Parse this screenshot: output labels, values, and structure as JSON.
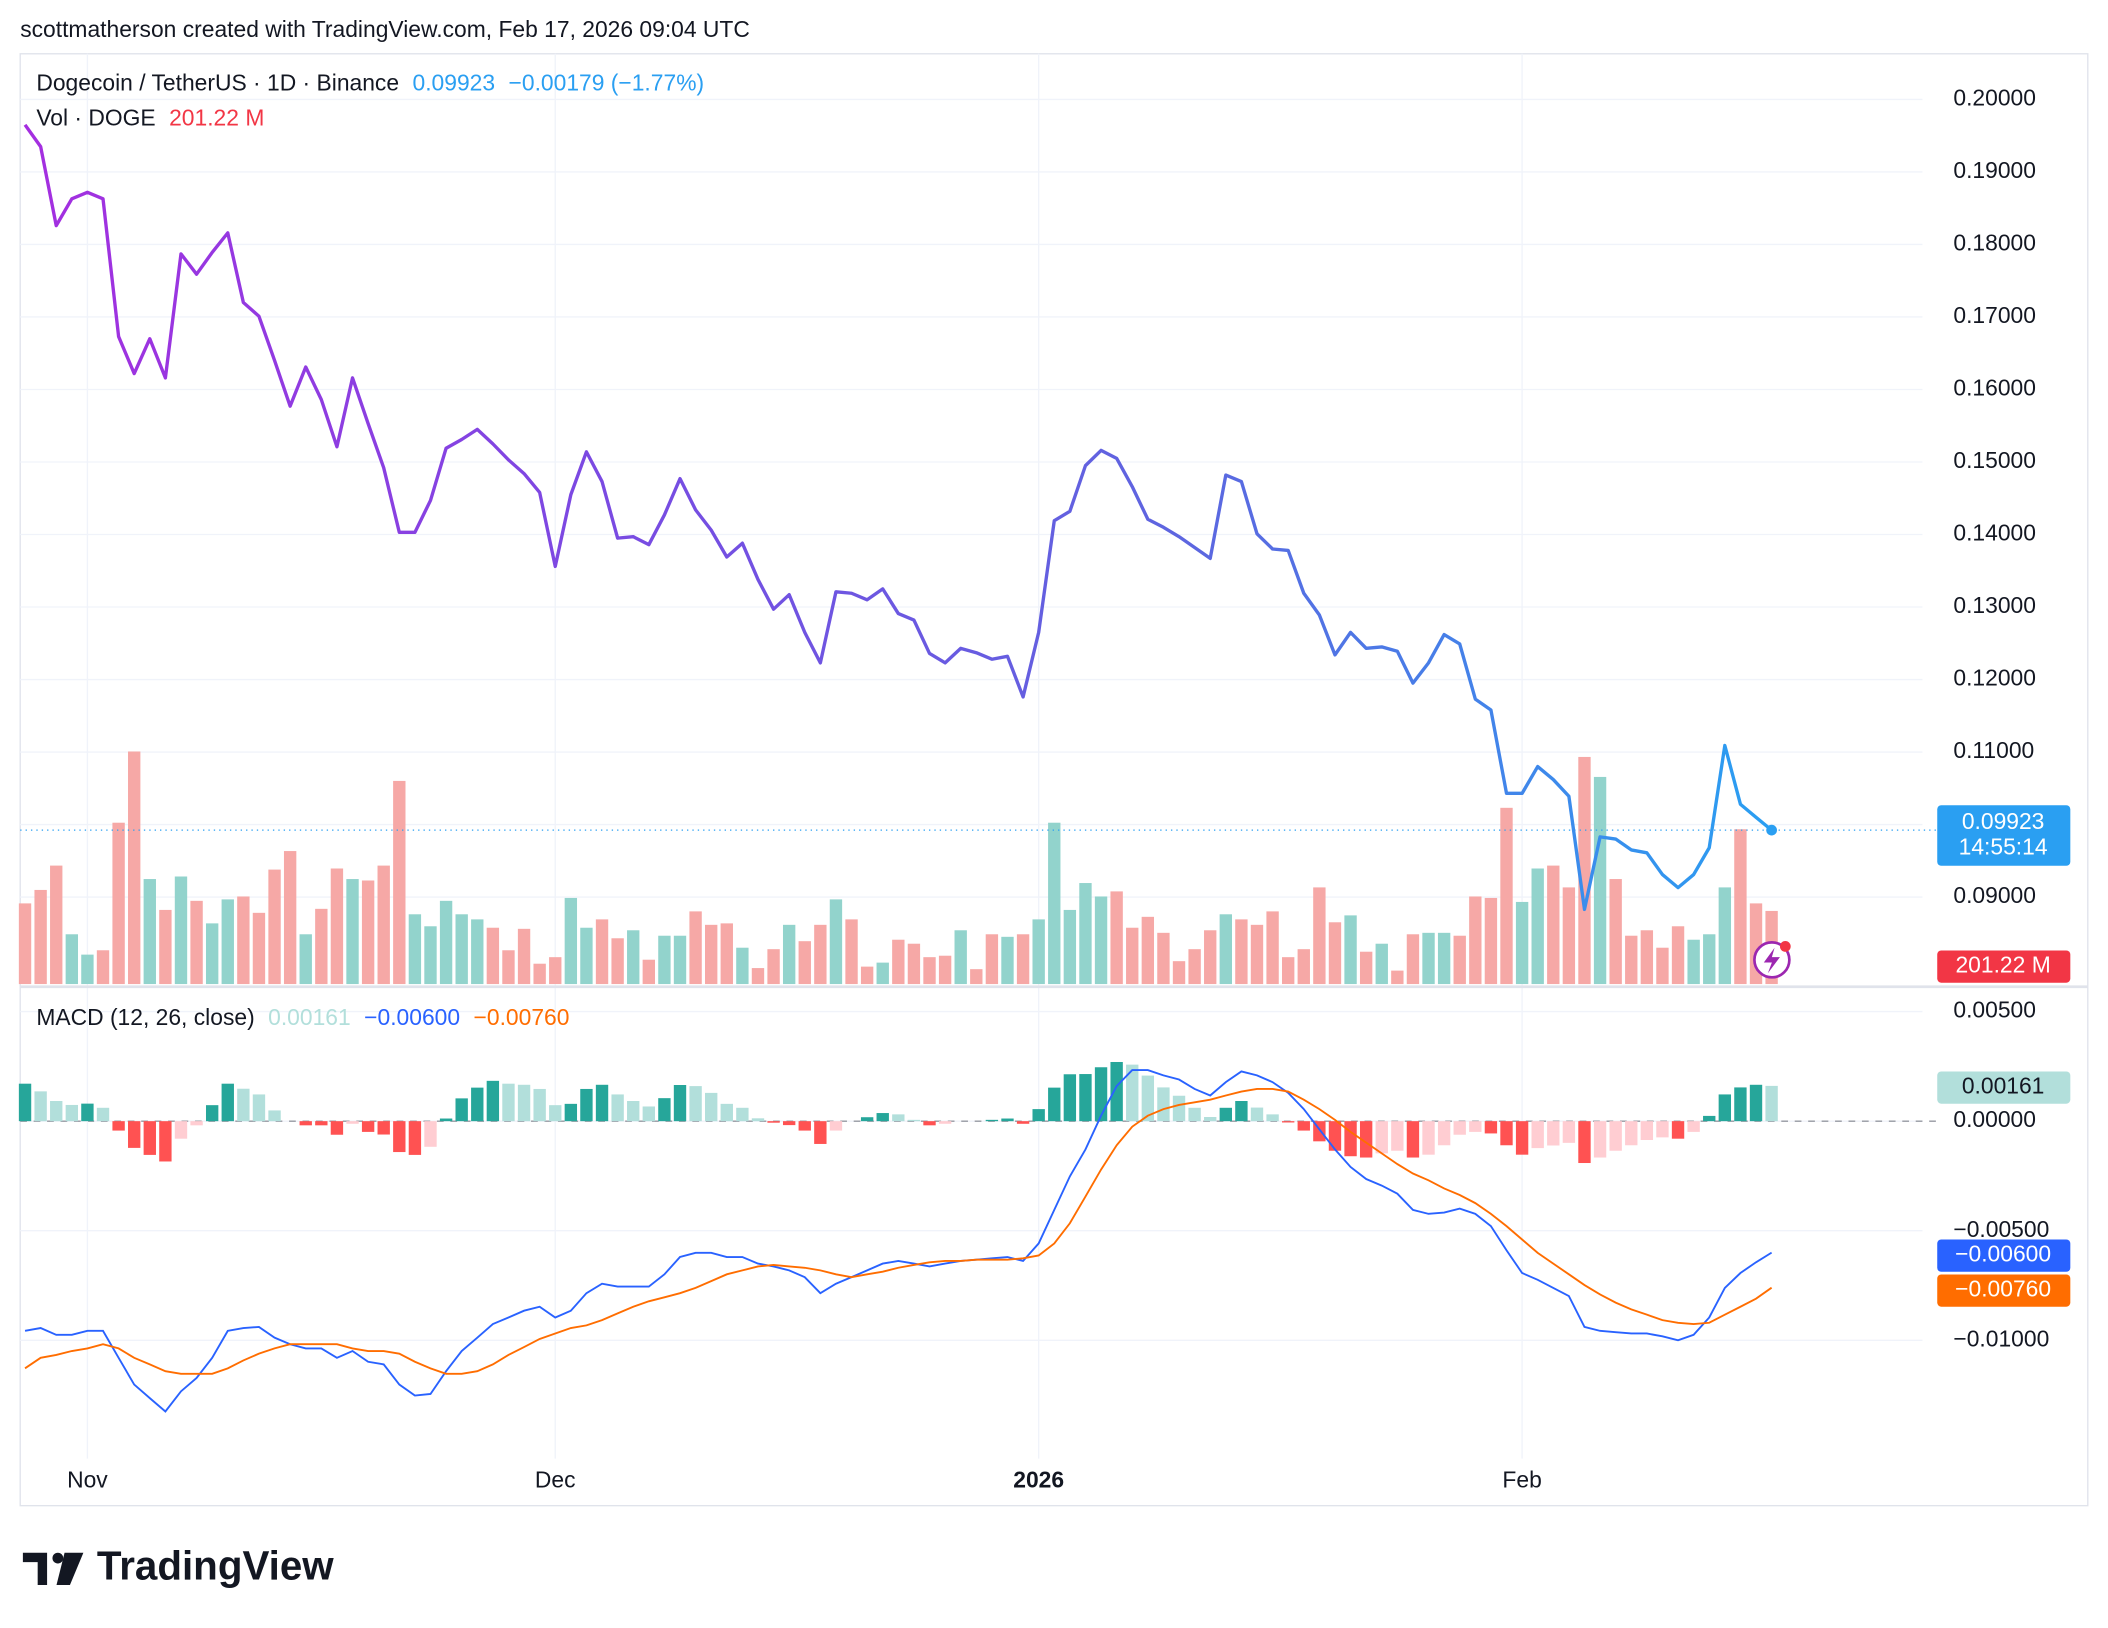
{
  "header": "scottmatherson created with TradingView.com, Feb 17, 2026 09:04 UTC",
  "footer": "TradingView",
  "chart_data": [
    {
      "type": "line",
      "title": "Dogecoin / TetherUS · 1D · Binance",
      "change_label": "−0.00179 (−1.77%)",
      "countdown": "14:55:14",
      "colors": [
        "#a52ee0",
        "#7a4ae2",
        "#5d66e0",
        "#2a9ff2"
      ],
      "grid": true,
      "ylim": [
        0.078,
        0.2063
      ],
      "yticks": [
        {
          "value": 0.09,
          "label": "0.09000"
        },
        {
          "value": 0.1,
          "label": "0.10000"
        },
        {
          "value": 0.11,
          "label": "0.11000"
        },
        {
          "value": 0.12,
          "label": "0.12000"
        },
        {
          "value": 0.13,
          "label": "0.13000"
        },
        {
          "value": 0.14,
          "label": "0.14000"
        },
        {
          "value": 0.15,
          "label": "0.15000"
        },
        {
          "value": 0.16,
          "label": "0.16000"
        },
        {
          "value": 0.17,
          "label": "0.17000"
        },
        {
          "value": 0.18,
          "label": "0.18000"
        },
        {
          "value": 0.19,
          "label": "0.19000"
        },
        {
          "value": 0.2,
          "label": "0.20000"
        }
      ],
      "values": [
        0.1965,
        0.1935,
        0.1826,
        0.1863,
        0.1872,
        0.1863,
        0.1673,
        0.1622,
        0.167,
        0.1616,
        0.1787,
        0.1759,
        0.1789,
        0.1816,
        0.172,
        0.1701,
        0.164,
        0.1577,
        0.1631,
        0.1586,
        0.1521,
        0.1616,
        0.1553,
        0.1492,
        0.1403,
        0.1403,
        0.1447,
        0.1519,
        0.1531,
        0.1545,
        0.1525,
        0.1503,
        0.1484,
        0.1458,
        0.1356,
        0.1455,
        0.1514,
        0.1473,
        0.1395,
        0.1397,
        0.1386,
        0.1427,
        0.1477,
        0.1434,
        0.1406,
        0.1369,
        0.1388,
        0.1338,
        0.1297,
        0.1317,
        0.1265,
        0.1223,
        0.1321,
        0.1319,
        0.131,
        0.1325,
        0.1291,
        0.1282,
        0.1236,
        0.1223,
        0.1243,
        0.1237,
        0.1228,
        0.1232,
        0.1176,
        0.1265,
        0.1419,
        0.1432,
        0.1495,
        0.1516,
        0.1505,
        0.1466,
        0.1421,
        0.141,
        0.1397,
        0.1382,
        0.1367,
        0.1482,
        0.1473,
        0.1401,
        0.138,
        0.1378,
        0.1319,
        0.1289,
        0.1234,
        0.1265,
        0.1243,
        0.1245,
        0.1239,
        0.1195,
        0.1223,
        0.1262,
        0.1249,
        0.1173,
        0.1158,
        0.1043,
        0.1043,
        0.108,
        0.1062,
        0.1039,
        0.0883,
        0.0983,
        0.098,
        0.0965,
        0.0961,
        0.0931,
        0.0913,
        0.0931,
        0.0968,
        0.1109,
        0.1028,
        0.101,
        0.09923
      ],
      "volume": {
        "name": "Vol · DOGE",
        "last_label": "201.22 M",
        "label_color": "#f23645",
        "up_color": "#92d3cc",
        "down_color": "#f6a8a6",
        "values": [
          222,
          259,
          326,
          137,
          81,
          93,
          444,
          640,
          289,
          204,
          296,
          229,
          167,
          233,
          241,
          196,
          315,
          366,
          137,
          207,
          318,
          289,
          285,
          326,
          559,
          192,
          159,
          229,
          192,
          178,
          155,
          93,
          152,
          56,
          74,
          237,
          155,
          178,
          126,
          148,
          67,
          133,
          133,
          200,
          163,
          167,
          100,
          44,
          96,
          163,
          118,
          163,
          233,
          178,
          48,
          59,
          122,
          111,
          74,
          78,
          148,
          41,
          137,
          130,
          137,
          178,
          444,
          204,
          278,
          241,
          255,
          155,
          185,
          141,
          63,
          96,
          148,
          192,
          178,
          163,
          200,
          74,
          96,
          266,
          170,
          189,
          89,
          111,
          37,
          137,
          141,
          141,
          133,
          241,
          237,
          485,
          226,
          318,
          326,
          266,
          625,
          570,
          289,
          133,
          148,
          100,
          159,
          122,
          137,
          266,
          426,
          222,
          201.22
        ]
      }
    },
    {
      "type": "macd",
      "title": "MACD (12, 26, close)",
      "grid": true,
      "categories": [
        null,
        null,
        null,
        null,
        "Nov",
        null,
        null,
        null,
        null,
        null,
        null,
        null,
        null,
        null,
        null,
        null,
        null,
        null,
        null,
        null,
        null,
        null,
        null,
        null,
        null,
        null,
        null,
        null,
        null,
        null,
        null,
        null,
        null,
        null,
        "Dec",
        null,
        null,
        null,
        null,
        null,
        null,
        null,
        null,
        null,
        null,
        null,
        null,
        null,
        null,
        null,
        null,
        null,
        null,
        null,
        null,
        null,
        null,
        null,
        null,
        null,
        null,
        null,
        null,
        null,
        null,
        "2026",
        null,
        null,
        null,
        null,
        null,
        null,
        null,
        null,
        null,
        null,
        null,
        null,
        null,
        null,
        null,
        null,
        null,
        null,
        null,
        null,
        null,
        null,
        null,
        null,
        null,
        null,
        null,
        null,
        null,
        null,
        "Feb",
        null,
        null,
        null,
        null,
        null,
        null,
        null,
        null,
        null,
        null,
        null,
        null,
        null,
        null,
        null,
        null
      ],
      "ylim": [
        -0.0154,
        0.00595
      ],
      "yticks": [
        {
          "value": -0.01,
          "label": "−0.01000"
        },
        {
          "value": -0.005,
          "label": "−0.00500"
        },
        {
          "value": 0,
          "label": "0.00000"
        },
        {
          "value": 0.005,
          "label": "0.00500"
        }
      ],
      "histogram": {
        "colors": [
          "#26a69a",
          "#b2dfdb",
          "#ff5252",
          "#ffcdd2"
        ],
        "values": [
          0.00171,
          0.00136,
          0.00092,
          0.00074,
          0.0008,
          0.00061,
          -0.00043,
          -0.00122,
          -0.00154,
          -0.00184,
          -0.0008,
          -0.00019,
          0.00073,
          0.00171,
          0.00148,
          0.00122,
          0.00049,
          0.0,
          -0.00019,
          -0.00019,
          -0.00062,
          -0.00012,
          -0.00049,
          -0.00061,
          -0.00141,
          -0.00154,
          -0.00117,
          0.00012,
          0.00104,
          0.00153,
          0.00184,
          0.00171,
          0.00166,
          0.00147,
          0.00073,
          0.00079,
          0.00147,
          0.00166,
          0.00122,
          0.00092,
          0.00067,
          0.00105,
          0.00165,
          0.0016,
          0.00129,
          0.00079,
          0.00061,
          0.00013,
          -7e-05,
          -0.00018,
          -0.00043,
          -0.00104,
          -0.00043,
          0.0,
          0.00018,
          0.00037,
          0.00031,
          6e-05,
          -0.00019,
          -0.00012,
          0.0,
          0.0,
          6e-05,
          0.00012,
          -0.00012,
          0.00055,
          0.00153,
          0.00214,
          0.00215,
          0.00246,
          0.0027,
          0.00258,
          0.00208,
          0.00154,
          0.00116,
          0.00061,
          0.00019,
          0.00061,
          0.00092,
          0.00062,
          0.00031,
          -6e-05,
          -0.00043,
          -0.00092,
          -0.00135,
          -0.0016,
          -0.00166,
          -0.00147,
          -0.00135,
          -0.00166,
          -0.00153,
          -0.0011,
          -0.00062,
          -0.00049,
          -0.00056,
          -0.0011,
          -0.00153,
          -0.00123,
          -0.00111,
          -0.00099,
          -0.00191,
          -0.00166,
          -0.00135,
          -0.0011,
          -0.00086,
          -0.00074,
          -0.0008,
          -0.00049,
          0.00024,
          0.00122,
          0.00154,
          0.00166,
          0.00161
        ]
      },
      "series": [
        {
          "color": "#2962ff",
          "last_label": "−0.00600",
          "values": [
            -0.00957,
            -0.00944,
            -0.00975,
            -0.00975,
            -0.00957,
            -0.00957,
            -0.0108,
            -0.01202,
            -0.01264,
            -0.01325,
            -0.01233,
            -0.01172,
            -0.0108,
            -0.00957,
            -0.00944,
            -0.00939,
            -0.00988,
            -0.01018,
            -0.01037,
            -0.01037,
            -0.0108,
            -0.01049,
            -0.01098,
            -0.0111,
            -0.01202,
            -0.01252,
            -0.01245,
            -0.01141,
            -0.01049,
            -0.00988,
            -0.00926,
            -0.00896,
            -0.00865,
            -0.00847,
            -0.00896,
            -0.00865,
            -0.00785,
            -0.00742,
            -0.00755,
            -0.00755,
            -0.00755,
            -0.00699,
            -0.0062,
            -0.00601,
            -0.00601,
            -0.0062,
            -0.0062,
            -0.0065,
            -0.00663,
            -0.00681,
            -0.00712,
            -0.00785,
            -0.00742,
            -0.00712,
            -0.00681,
            -0.0065,
            -0.00638,
            -0.0065,
            -0.00663,
            -0.0065,
            -0.00638,
            -0.00632,
            -0.00626,
            -0.0062,
            -0.00638,
            -0.00558,
            -0.00405,
            -0.00252,
            -0.00129,
            0.00025,
            0.0016,
            0.00233,
            0.00233,
            0.00209,
            0.0019,
            0.00147,
            0.00117,
            0.00178,
            0.00227,
            0.00209,
            0.00178,
            0.00129,
            0.00055,
            -0.00037,
            -0.00129,
            -0.00209,
            -0.00264,
            -0.00294,
            -0.00331,
            -0.00405,
            -0.00423,
            -0.00417,
            -0.00399,
            -0.00423,
            -0.00479,
            -0.00589,
            -0.00693,
            -0.00724,
            -0.00761,
            -0.00798,
            -0.00939,
            -0.00957,
            -0.00963,
            -0.00969,
            -0.00969,
            -0.00982,
            -0.01,
            -0.00975,
            -0.00896,
            -0.00761,
            -0.00693,
            -0.00644,
            -0.006
          ]
        },
        {
          "color": "#ff6d00",
          "last_label": "−0.00760",
          "values": [
            -0.01128,
            -0.0108,
            -0.01067,
            -0.01049,
            -0.01037,
            -0.01018,
            -0.01037,
            -0.0108,
            -0.0111,
            -0.01141,
            -0.01153,
            -0.01153,
            -0.01153,
            -0.01128,
            -0.01092,
            -0.01061,
            -0.01037,
            -0.01018,
            -0.01018,
            -0.01018,
            -0.01018,
            -0.01037,
            -0.01049,
            -0.01049,
            -0.01061,
            -0.01098,
            -0.01128,
            -0.01153,
            -0.01153,
            -0.01141,
            -0.0111,
            -0.01067,
            -0.01031,
            -0.00994,
            -0.00969,
            -0.00944,
            -0.00932,
            -0.00908,
            -0.00877,
            -0.00847,
            -0.00822,
            -0.00804,
            -0.00785,
            -0.00761,
            -0.0073,
            -0.00699,
            -0.00681,
            -0.00663,
            -0.00656,
            -0.00663,
            -0.00669,
            -0.00681,
            -0.00699,
            -0.00712,
            -0.00699,
            -0.00687,
            -0.00669,
            -0.00656,
            -0.00644,
            -0.00638,
            -0.00638,
            -0.00632,
            -0.00632,
            -0.00632,
            -0.00626,
            -0.00613,
            -0.00558,
            -0.00466,
            -0.00344,
            -0.00221,
            -0.0011,
            -0.00025,
            0.00025,
            0.00055,
            0.00074,
            0.00086,
            0.00098,
            0.00117,
            0.00135,
            0.00147,
            0.00147,
            0.00135,
            0.00098,
            0.00055,
            6e-05,
            -0.00049,
            -0.00098,
            -0.00147,
            -0.00196,
            -0.00239,
            -0.0027,
            -0.00307,
            -0.00337,
            -0.00374,
            -0.00423,
            -0.00479,
            -0.0054,
            -0.00601,
            -0.0065,
            -0.00699,
            -0.00748,
            -0.00791,
            -0.00828,
            -0.00859,
            -0.00883,
            -0.00908,
            -0.0092,
            -0.00926,
            -0.0092,
            -0.00883,
            -0.00847,
            -0.0081,
            -0.0076
          ]
        }
      ]
    }
  ]
}
